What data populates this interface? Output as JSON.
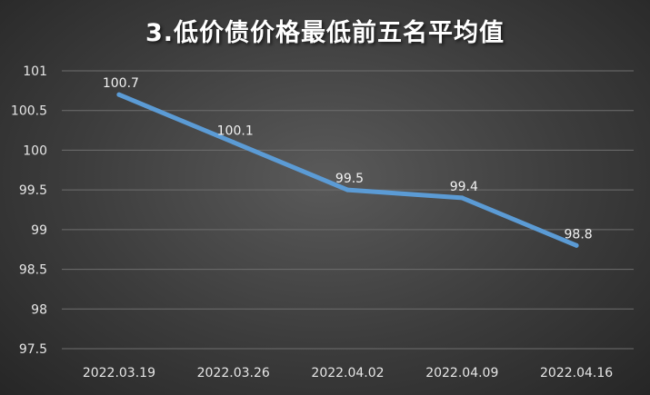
{
  "chart_data": {
    "type": "line",
    "title": "3.低价债价格最低前五名平均值",
    "categories": [
      "2022.03.19",
      "2022.03.26",
      "2022.04.02",
      "2022.04.09",
      "2022.04.16"
    ],
    "series": [
      {
        "values": [
          100.7,
          100.1,
          99.5,
          99.4,
          98.8
        ],
        "color": "#5b9bd5"
      }
    ],
    "data_labels": [
      "100.7",
      "100.1",
      "99.5",
      "99.4",
      "98.8"
    ],
    "ylim": [
      97.5,
      101
    ],
    "yticks": [
      97.5,
      98,
      98.5,
      99,
      99.5,
      100,
      100.5,
      101
    ],
    "ytick_labels": [
      "97.5",
      "98",
      "98.5",
      "99",
      "99.5",
      "100",
      "100.5",
      "101"
    ],
    "grid": true,
    "legend": "none"
  }
}
